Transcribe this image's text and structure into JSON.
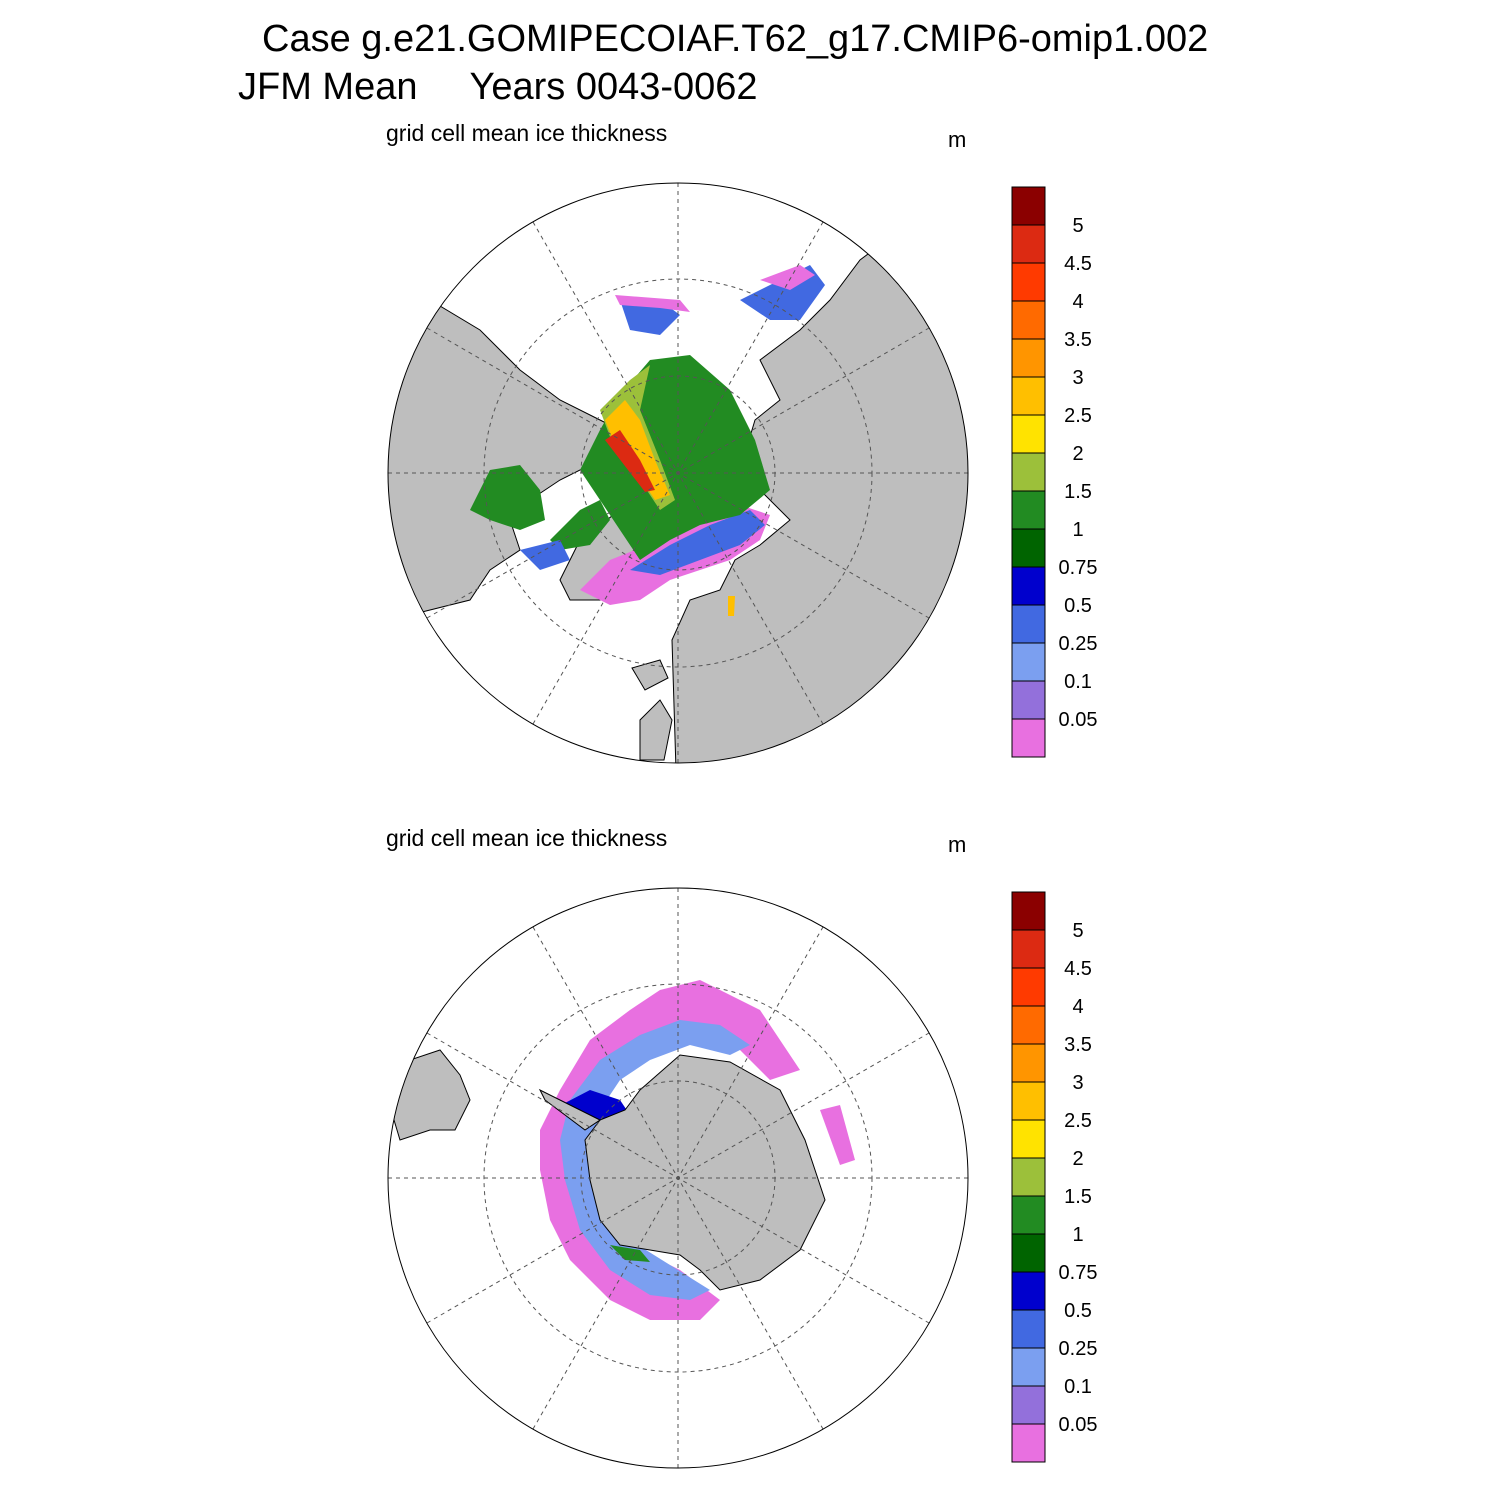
{
  "title": {
    "case_line": "Case g.e21.GOMIPECOIAF.T62_g17.CMIP6-omip1.002",
    "season": "JFM Mean",
    "years": "Years 0043-0062"
  },
  "panels": [
    {
      "id": "north",
      "variable": "grid cell mean ice thickness",
      "units": "m"
    },
    {
      "id": "south",
      "variable": "grid cell mean ice thickness",
      "units": "m"
    }
  ],
  "colorbar": {
    "levels": [
      "5",
      "4.5",
      "4",
      "3.5",
      "3",
      "2.5",
      "2",
      "1.5",
      "1",
      "0.75",
      "0.5",
      "0.25",
      "0.1",
      "0.05"
    ],
    "colors": [
      "#8b0000",
      "#dc2a12",
      "#ff3a00",
      "#ff6a00",
      "#ff9500",
      "#ffbf00",
      "#ffe300",
      "#9cc03a",
      "#228b22",
      "#006400",
      "#0000cd",
      "#4169e1",
      "#7b9ff0",
      "#9370db",
      "#e870e0"
    ]
  },
  "map_colors": {
    "land": "#bebebe",
    "ocean": "#ffffff",
    "coast": "#000000"
  }
}
